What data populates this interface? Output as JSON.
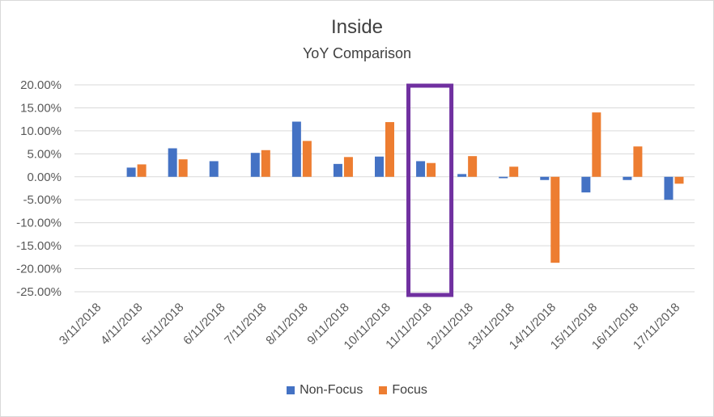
{
  "chart_data": {
    "type": "bar",
    "title": "Inside",
    "subtitle": "YoY Comparison",
    "categories": [
      "3/11/2018",
      "4/11/2018",
      "5/11/2018",
      "6/11/2018",
      "7/11/2018",
      "8/11/2018",
      "9/11/2018",
      "10/11/2018",
      "11/11/2018",
      "12/11/2018",
      "13/11/2018",
      "14/11/2018",
      "15/11/2018",
      "16/11/2018",
      "17/11/2018"
    ],
    "series": [
      {
        "name": "Non-Focus",
        "color": "#4472c4",
        "values": [
          0,
          0.02,
          0.062,
          0.034,
          0.052,
          0.12,
          0.028,
          0.044,
          0.034,
          0.006,
          -0.003,
          -0.007,
          -0.034,
          -0.007,
          -0.05
        ]
      },
      {
        "name": "Focus",
        "color": "#ed7d31",
        "values": [
          0,
          0.027,
          0.038,
          0,
          0.058,
          0.078,
          0.043,
          0.119,
          0.03,
          0.045,
          0.022,
          -0.187,
          0.14,
          0.066,
          -0.015
        ]
      }
    ],
    "ylim": [
      -0.25,
      0.2
    ],
    "yticks": [
      "20.00%",
      "15.00%",
      "10.00%",
      "5.00%",
      "0.00%",
      "-5.00%",
      "-10.00%",
      "-15.00%",
      "-20.00%",
      "-25.00%"
    ],
    "grid": true,
    "legend": "bottom",
    "highlight": {
      "category": "11/11/2018",
      "color": "#7030a0"
    }
  }
}
